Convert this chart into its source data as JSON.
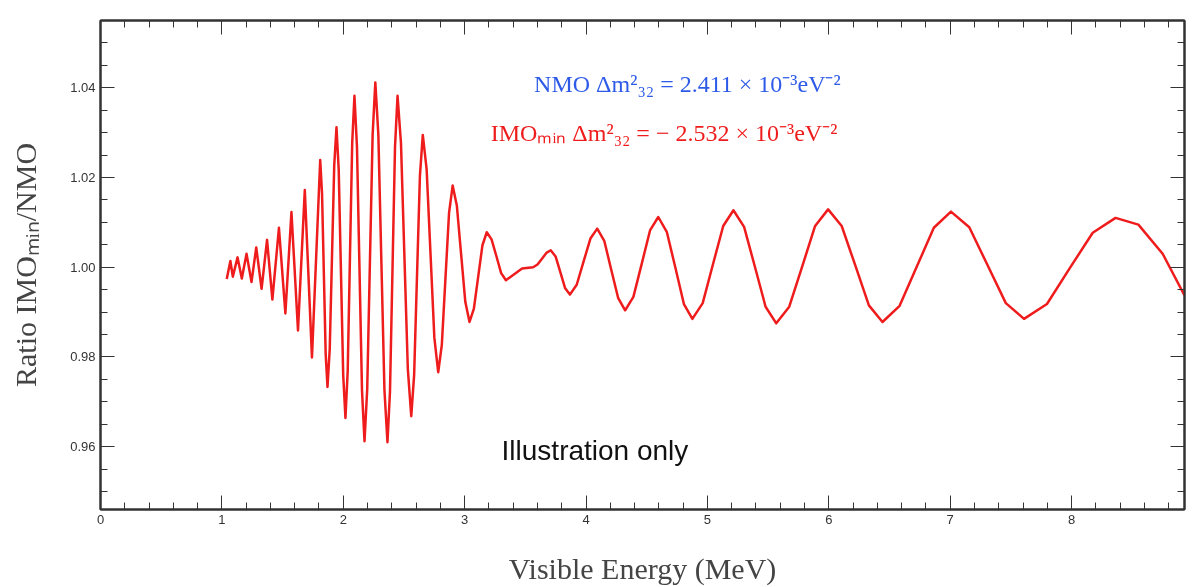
{
  "chart_data": {
    "type": "line",
    "xlabel": "Visible Energy (MeV)",
    "ylabel": "Ratio IMOₘᵢₙ/NMO",
    "annotations": [
      "NMO Δm²₃₂ = 2.411 × 10⁻³eV⁻²",
      "IMOₘᵢₙ Δm²₃₂ = − 2.532 × 10⁻³eV⁻²",
      "Illustration only"
    ],
    "xlim": [
      0,
      8.93
    ],
    "xticks": [
      0,
      1,
      2,
      3,
      4,
      5,
      6,
      7,
      8
    ],
    "ylim": [
      0.946,
      1.055
    ],
    "yticks": [
      0.96,
      0.98,
      {
        "value": 1.0,
        "label": "1.00"
      },
      1.02,
      1.04
    ],
    "grid": false,
    "line_style": "solid",
    "series": [
      {
        "color": "#ee1c1c",
        "x": [
          1.04,
          1.07,
          1.09,
          1.129,
          1.164,
          1.203,
          1.244,
          1.283,
          1.327,
          1.372,
          1.416,
          1.47,
          1.523,
          1.573,
          1.627,
          1.683,
          1.742,
          1.81,
          1.825,
          1.84,
          1.855,
          1.87,
          1.8885,
          1.907,
          1.9255,
          1.944,
          1.9625,
          1.981,
          1.9995,
          2.018,
          2.0365,
          2.055,
          2.0735,
          2.092,
          2.1128,
          2.1335,
          2.1543,
          2.175,
          2.1973,
          2.2195,
          2.2418,
          2.264,
          2.289,
          2.314,
          2.339,
          2.364,
          2.3848,
          2.4055,
          2.4263,
          2.447,
          2.4753,
          2.5035,
          2.5318,
          2.56,
          2.5838,
          2.6075,
          2.6313,
          2.655,
          2.6868,
          2.7185,
          2.7503,
          2.782,
          2.8118,
          2.8415,
          2.8713,
          2.901,
          2.9358,
          2.9705,
          3.0053,
          3.04,
          3.0755,
          3.111,
          3.1465,
          3.182,
          3.2215,
          3.261,
          3.3005,
          3.34,
          3.473,
          3.564,
          3.6,
          3.637,
          3.673,
          3.709,
          3.749,
          3.788,
          3.828,
          3.867,
          3.923,
          3.98,
          4.036,
          4.092,
          4.15,
          4.207,
          4.265,
          4.322,
          4.39,
          4.459,
          4.527,
          4.595,
          4.665,
          4.736,
          4.806,
          4.876,
          4.961,
          5.045,
          5.13,
          5.214,
          5.302,
          5.391,
          5.479,
          5.567,
          5.674,
          5.781,
          5.887,
          5.994,
          6.106,
          6.218,
          6.33,
          6.442,
          6.583,
          6.724,
          6.865,
          7.006,
          7.157,
          7.307,
          7.458,
          7.608,
          7.797,
          7.985,
          8.174,
          8.362,
          8.55,
          8.75,
          8.93
        ],
        "values": [
          0.9974,
          1.0014,
          0.9979,
          1.0022,
          0.9975,
          1.003,
          0.9967,
          1.0044,
          0.9952,
          1.0061,
          0.9928,
          1.0088,
          0.9897,
          1.0123,
          0.9859,
          1.0172,
          0.9799,
          1.0239,
          1.0165,
          0.9986,
          0.9807,
          0.9733,
          0.9818,
          1.0023,
          1.0227,
          1.0312,
          1.0217,
          0.9988,
          0.9759,
          0.9664,
          0.9769,
          1.0023,
          1.0277,
          1.0382,
          1.0269,
          0.9997,
          0.9725,
          0.9612,
          0.9729,
          1.0012,
          1.0295,
          1.0412,
          1.0295,
          1.0011,
          0.9727,
          0.961,
          0.9723,
          0.9996,
          1.0269,
          1.0382,
          1.0277,
          1.0025,
          0.9773,
          0.9668,
          0.976,
          0.9982,
          1.0203,
          1.0295,
          1.0218,
          1.0031,
          0.9843,
          0.9766,
          0.9827,
          0.9974,
          1.0121,
          1.0182,
          1.0137,
          1.003,
          0.9923,
          0.9878,
          0.9907,
          0.9978,
          1.0049,
          1.0078,
          1.0062,
          1.0025,
          0.9987,
          0.9971,
          0.9997,
          1.0,
          1.0006,
          1.0019,
          1.0032,
          1.0038,
          1.0024,
          0.9989,
          0.9953,
          0.9939,
          0.9961,
          1.0013,
          1.0064,
          1.0086,
          1.0059,
          0.9995,
          0.9931,
          0.9904,
          0.9934,
          1.0008,
          1.0082,
          1.0112,
          1.0079,
          0.9999,
          0.9918,
          0.9885,
          0.992,
          1.0006,
          1.0092,
          1.0127,
          1.009,
          1.0001,
          0.9912,
          0.9875,
          0.9912,
          1.0002,
          1.0092,
          1.0129,
          1.0092,
          1.0004,
          0.9915,
          0.9878,
          0.9914,
          1.0001,
          1.0088,
          1.0124,
          1.0089,
          1.0005,
          0.992,
          0.9885,
          0.9918,
          0.9998,
          1.0077,
          1.011,
          1.0095,
          1.003,
          0.9937
        ]
      }
    ]
  }
}
